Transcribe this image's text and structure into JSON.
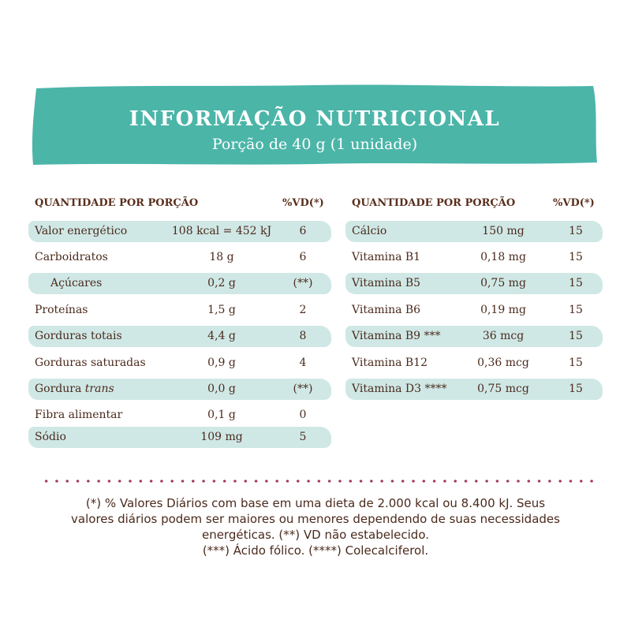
{
  "banner": {
    "title": "INFORMAÇÃO NUTRICIONAL",
    "subtitle": "Porção de 40 g (1 unidade)",
    "color": "#4bb5a8"
  },
  "band_color": "#cfe8e6",
  "dot_color": "#a0335c",
  "left_table": {
    "header_name": "QUANTIDADE POR PORÇÃO",
    "header_vd": "%VD(*)",
    "rows": [
      {
        "name": "Valor energético",
        "amount": "108 kcal = 452 kJ",
        "vd": "6"
      },
      {
        "name": "Carboidratos",
        "amount": "18 g",
        "vd": "6"
      },
      {
        "name": "Açúcares",
        "amount": "0,2 g",
        "vd": "(**)"
      },
      {
        "name": "Proteínas",
        "amount": "1,5 g",
        "vd": "2"
      },
      {
        "name": "Gorduras totais",
        "amount": "4,4 g",
        "vd": "8"
      },
      {
        "name": "Gorduras saturadas",
        "amount": "0,9 g",
        "vd": "4"
      },
      {
        "name": "Gordura",
        "name_italic": "trans",
        "amount": "0,0 g",
        "vd": "(**)"
      },
      {
        "name": "Fibra alimentar",
        "amount": "0,1 g",
        "vd": "0"
      },
      {
        "name": "Sódio",
        "amount": "109 mg",
        "vd": "5"
      }
    ]
  },
  "right_table": {
    "header_name": "QUANTIDADE POR PORÇÃO",
    "header_vd": "%VD(*)",
    "rows": [
      {
        "name": "Cálcio",
        "amount": "150 mg",
        "vd": "15"
      },
      {
        "name": "Vitamina B1",
        "amount": "0,18 mg",
        "vd": "15"
      },
      {
        "name": "Vitamina B5",
        "amount": "0,75 mg",
        "vd": "15"
      },
      {
        "name": "Vitamina B6",
        "amount": "0,19 mg",
        "vd": "15"
      },
      {
        "name": "Vitamina B9 ***",
        "amount": "36 mcg",
        "vd": "15"
      },
      {
        "name": "Vitamina B12",
        "amount": "0,36 mcg",
        "vd": "15"
      },
      {
        "name": "Vitamina D3 ****",
        "amount": "0,75 mcg",
        "vd": "15"
      }
    ]
  },
  "footnote": {
    "line1": "(*) % Valores Diários com base em uma dieta de 2.000 kcal ou 8.400 kJ. Seus",
    "line2": "valores diários podem ser maiores ou menores dependendo de suas necessidades",
    "line3": "energéticas. (**) VD não estabelecido.",
    "line4": "(***) Ácido fólico. (****) Colecalciferol."
  }
}
